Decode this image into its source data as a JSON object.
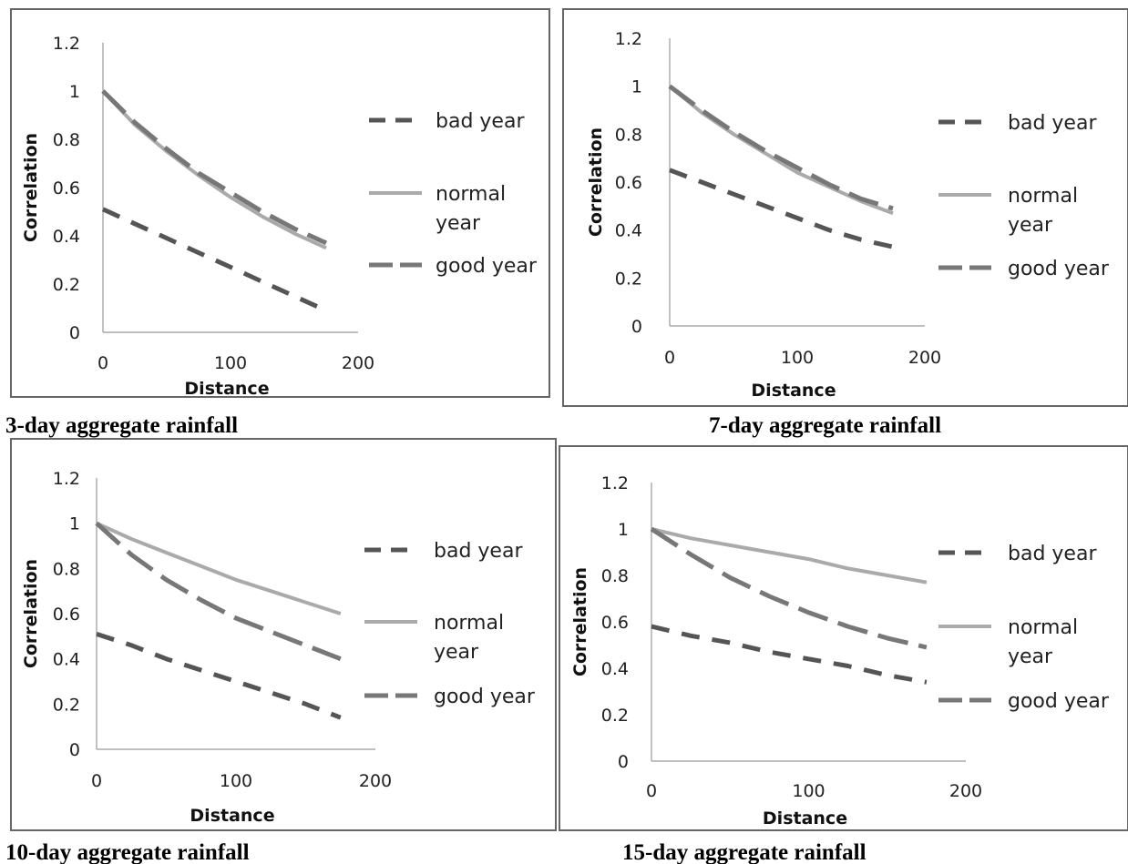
{
  "chart_data": [
    {
      "type": "line",
      "caption": "3-day aggregate rainfall",
      "xlabel": "Distance",
      "ylabel": "Correlation",
      "xlim": [
        0,
        200
      ],
      "ylim": [
        0,
        1.2
      ],
      "x_ticks": [
        "0",
        "100",
        "200"
      ],
      "y_ticks": [
        "0",
        "0.2",
        "0.4",
        "0.6",
        "0.8",
        "1",
        "1.2"
      ],
      "x": [
        0,
        25,
        50,
        75,
        100,
        125,
        150,
        175
      ],
      "series": [
        {
          "name": "bad year",
          "style": "dashed",
          "color": "#555555",
          "values": [
            0.51,
            0.45,
            0.39,
            0.33,
            0.27,
            0.21,
            0.15,
            0.09
          ]
        },
        {
          "name": "normal year",
          "style": "solid",
          "color": "#aaaaaa",
          "values": [
            1.0,
            0.86,
            0.75,
            0.65,
            0.56,
            0.48,
            0.41,
            0.35
          ]
        },
        {
          "name": "good year",
          "style": "long-dash",
          "color": "#777777",
          "values": [
            1.0,
            0.87,
            0.76,
            0.66,
            0.58,
            0.5,
            0.43,
            0.37
          ]
        }
      ],
      "legend": "right"
    },
    {
      "type": "line",
      "caption": "7-day aggregate rainfall",
      "xlabel": "Distance",
      "ylabel": "Correlation",
      "xlim": [
        0,
        200
      ],
      "ylim": [
        0,
        1.2
      ],
      "x_ticks": [
        "0",
        "100",
        "200"
      ],
      "y_ticks": [
        "0",
        "0.2",
        "0.4",
        "0.6",
        "0.8",
        "1",
        "1.2"
      ],
      "x": [
        0,
        25,
        50,
        75,
        100,
        125,
        150,
        175
      ],
      "series": [
        {
          "name": "bad year",
          "style": "dashed",
          "color": "#555555",
          "values": [
            0.65,
            0.6,
            0.55,
            0.5,
            0.45,
            0.4,
            0.36,
            0.33
          ]
        },
        {
          "name": "normal year",
          "style": "solid",
          "color": "#aaaaaa",
          "values": [
            1.0,
            0.89,
            0.8,
            0.72,
            0.64,
            0.58,
            0.52,
            0.47
          ]
        },
        {
          "name": "good year",
          "style": "long-dash",
          "color": "#777777",
          "values": [
            1.0,
            0.9,
            0.81,
            0.73,
            0.66,
            0.59,
            0.53,
            0.49
          ]
        }
      ],
      "legend": "right"
    },
    {
      "type": "line",
      "caption": "10-day aggregate rainfall",
      "xlabel": "Distance",
      "ylabel": "Correlation",
      "xlim": [
        0,
        200
      ],
      "ylim": [
        0,
        1.2
      ],
      "x_ticks": [
        "0",
        "100",
        "200"
      ],
      "y_ticks": [
        "0",
        "0.2",
        "0.4",
        "0.6",
        "0.8",
        "1",
        "1.2"
      ],
      "x": [
        0,
        25,
        50,
        75,
        100,
        125,
        150,
        175
      ],
      "series": [
        {
          "name": "bad year",
          "style": "dashed",
          "color": "#555555",
          "values": [
            0.51,
            0.46,
            0.4,
            0.35,
            0.3,
            0.25,
            0.2,
            0.14
          ]
        },
        {
          "name": "normal year",
          "style": "solid",
          "color": "#aaaaaa",
          "values": [
            1.0,
            0.93,
            0.87,
            0.81,
            0.75,
            0.7,
            0.65,
            0.6
          ]
        },
        {
          "name": "good year",
          "style": "long-dash",
          "color": "#777777",
          "values": [
            1.0,
            0.86,
            0.75,
            0.66,
            0.58,
            0.52,
            0.46,
            0.4
          ]
        }
      ],
      "legend": "right"
    },
    {
      "type": "line",
      "caption": "15-day aggregate rainfall",
      "xlabel": "Distance",
      "ylabel": "Correlation",
      "xlim": [
        0,
        200
      ],
      "ylim": [
        0,
        1.2
      ],
      "x_ticks": [
        "0",
        "100",
        "200"
      ],
      "y_ticks": [
        "0",
        "0.2",
        "0.4",
        "0.6",
        "0.8",
        "1",
        "1.2"
      ],
      "x": [
        0,
        25,
        50,
        75,
        100,
        125,
        150,
        175
      ],
      "series": [
        {
          "name": "bad year",
          "style": "dashed",
          "color": "#555555",
          "values": [
            0.58,
            0.54,
            0.51,
            0.47,
            0.44,
            0.41,
            0.37,
            0.34
          ]
        },
        {
          "name": "normal year",
          "style": "solid",
          "color": "#aaaaaa",
          "values": [
            1.0,
            0.96,
            0.93,
            0.9,
            0.87,
            0.83,
            0.8,
            0.77
          ]
        },
        {
          "name": "good year",
          "style": "long-dash",
          "color": "#777777",
          "values": [
            1.0,
            0.89,
            0.79,
            0.71,
            0.64,
            0.58,
            0.53,
            0.49
          ]
        }
      ],
      "legend": "right"
    }
  ],
  "legend_labels": {
    "bad": "bad year",
    "normal_line1": "normal",
    "normal_line2": "year",
    "good": "good year"
  }
}
